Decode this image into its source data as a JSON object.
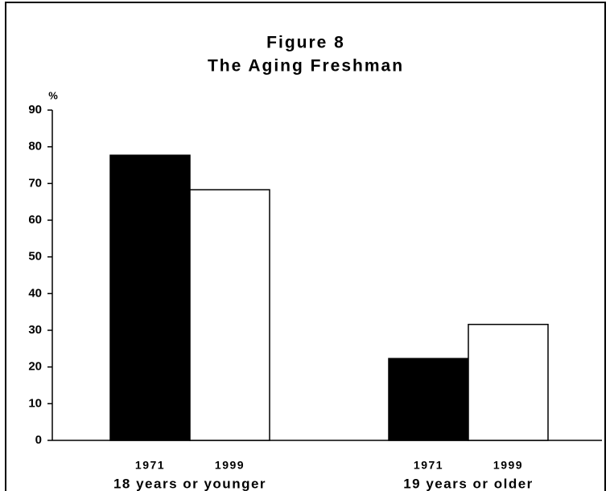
{
  "chart_data": {
    "type": "bar",
    "title": "Figure 8",
    "subtitle": "The Aging Freshman",
    "y_label": "%",
    "categories": [
      "18 years or younger",
      "19 years or older"
    ],
    "series": [
      {
        "name": "1971",
        "color": "#000000",
        "values": [
          77.7,
          22.3
        ]
      },
      {
        "name": "1999",
        "color": "#ffffff",
        "values": [
          68.3,
          31.6
        ]
      }
    ],
    "ylim": [
      0,
      90
    ],
    "yticks": [
      0,
      10,
      20,
      30,
      40,
      50,
      60,
      70,
      80,
      90
    ],
    "grid": false
  }
}
